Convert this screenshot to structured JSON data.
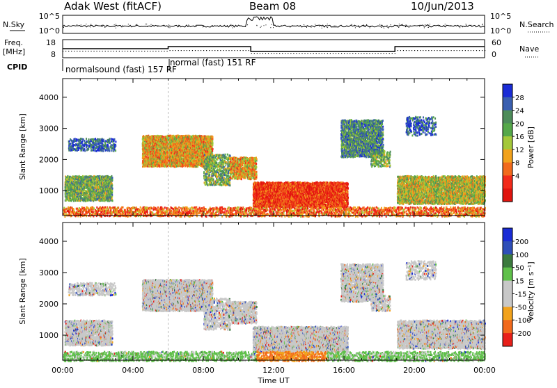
{
  "header": {
    "station": "Adak West (fitACF)",
    "beam": "Beam 08",
    "date": "10/Jun/2013"
  },
  "nsky_panel": {
    "left_label": "N.Sky",
    "right_label": "N.Search",
    "left_ticks": [
      "10^5",
      "10^0"
    ],
    "right_ticks": [
      "10^5",
      "10^0"
    ]
  },
  "freq_panel": {
    "left_label_line1": "Freq.",
    "left_label_line2": "[MHz]",
    "right_label": "Nave",
    "left_ticks": [
      "18",
      "8"
    ],
    "right_ticks": [
      "60",
      "0"
    ]
  },
  "cpid": {
    "label": "CPID",
    "modes": [
      "normalsound (fast) 157 RF",
      "normal (fast) 151 RF"
    ]
  },
  "colors": {
    "power": [
      "#1a2cd6",
      "#3a5fb0",
      "#4d8c5a",
      "#55a84a",
      "#a4c83a",
      "#f2a21c",
      "#f26a1c",
      "#f22a1a",
      "#e0140e"
    ],
    "velocity": [
      "#1a2cd6",
      "#2f4fb8",
      "#3b7a3e",
      "#5fc04a",
      "#c8c8c8",
      "#c8c8c8",
      "#f2a21c",
      "#f26a1c",
      "#e8201a"
    ]
  },
  "chart_data": [
    {
      "type": "heatmap",
      "title": "Power",
      "ylabel": "Slant Range [km]",
      "y_ticks": [
        "1000",
        "2000",
        "3000",
        "4000"
      ],
      "ylim": [
        200,
        4600
      ],
      "colorbar_label": "Power [dB]",
      "colorbar_ticks": [
        "28",
        "24",
        "20",
        "16",
        "12",
        "8",
        "4"
      ]
    },
    {
      "type": "heatmap",
      "title": "Velocity",
      "xlabel": "Time UT",
      "x_ticks": [
        "00:00",
        "04:00",
        "08:00",
        "12:00",
        "16:00",
        "20:00",
        "00:00"
      ],
      "xlim": [
        0,
        24
      ],
      "ylabel": "Slant Range [km]",
      "y_ticks": [
        "1000",
        "2000",
        "3000",
        "4000"
      ],
      "ylim": [
        200,
        4600
      ],
      "colorbar_label": "Velocity [m s⁻¹]",
      "colorbar_ticks": [
        "200",
        "100",
        "50",
        "15",
        "-15",
        "-50",
        "-100",
        "-200"
      ]
    }
  ]
}
